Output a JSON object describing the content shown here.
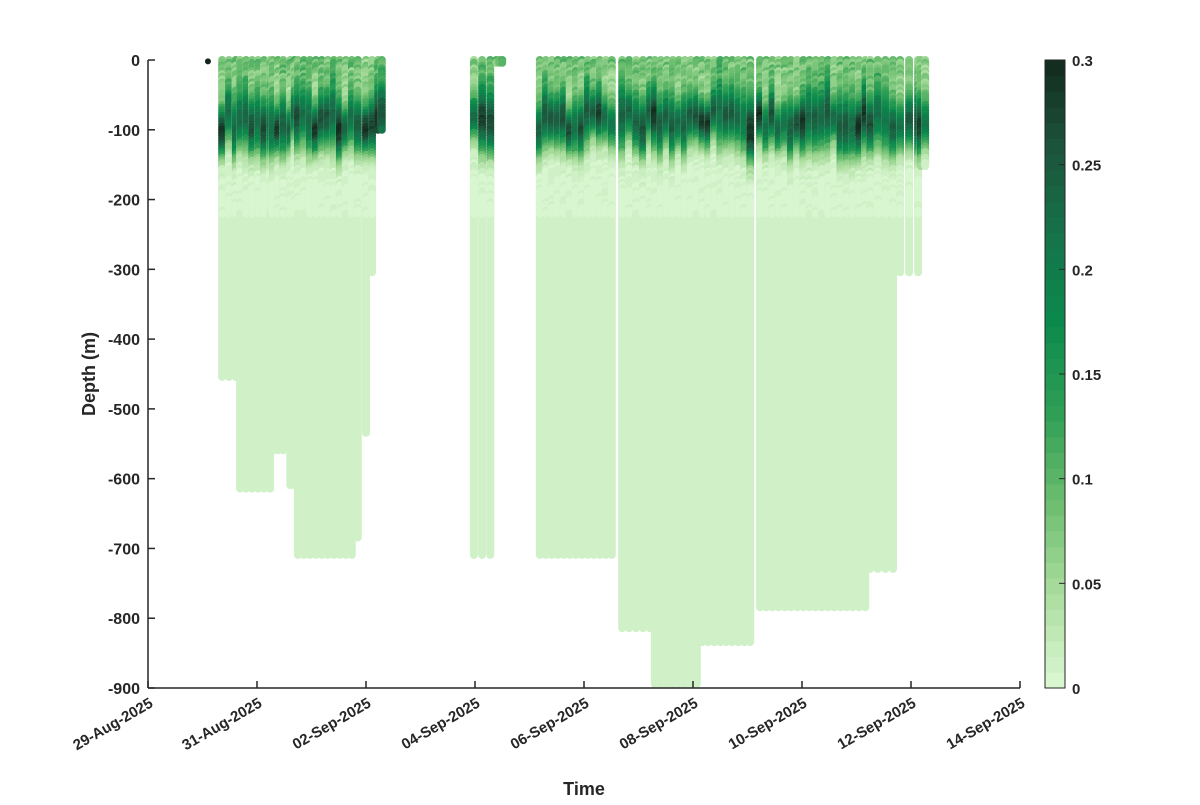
{
  "chart_data": {
    "type": "scatter",
    "title": "",
    "xlabel": "Time",
    "ylabel": "Depth (m)",
    "x_unit": "days since 29-Aug-2025",
    "xlim": [
      0,
      16
    ],
    "ylim": [
      -900,
      0
    ],
    "x_ticks": [
      0,
      2,
      4,
      6,
      8,
      10,
      12,
      14,
      16
    ],
    "x_tick_labels": [
      "29-Aug-2025",
      "31-Aug-2025",
      "02-Sep-2025",
      "04-Sep-2025",
      "06-Sep-2025",
      "08-Sep-2025",
      "10-Sep-2025",
      "12-Sep-2025",
      "14-Sep-2025"
    ],
    "y_ticks": [
      0,
      -100,
      -200,
      -300,
      -400,
      -500,
      -600,
      -700,
      -800,
      -900
    ],
    "y_tick_labels": [
      "0",
      "-100",
      "-200",
      "-300",
      "-400",
      "-500",
      "-600",
      "-700",
      "-800",
      "-900"
    ],
    "colorbar": {
      "range": [
        0,
        0.3
      ],
      "ticks": [
        0,
        0.05,
        0.1,
        0.15,
        0.2,
        0.25,
        0.3
      ],
      "tick_labels": [
        "0",
        "0.05",
        "0.1",
        "0.15",
        "0.2",
        "0.25",
        "0.3"
      ],
      "colors": [
        "#d8f6d0",
        "#a9dc9c",
        "#6bbd6e",
        "#2e9e55",
        "#0b8a4c",
        "#16714a",
        "#1c523a",
        "#11251a"
      ]
    },
    "profile_groups": [
      {
        "start_day": 1.36,
        "end_day": 1.61,
        "count": 3,
        "max_depth": -460
      },
      {
        "start_day": 1.69,
        "end_day": 2.24,
        "count": 6,
        "max_depth": -620
      },
      {
        "start_day": 2.29,
        "end_day": 2.48,
        "count": 3,
        "max_depth": -565
      },
      {
        "start_day": 2.61,
        "end_day": 2.69,
        "count": 2,
        "max_depth": -615
      },
      {
        "start_day": 2.75,
        "end_day": 3.74,
        "count": 10,
        "max_depth": -715
      },
      {
        "start_day": 3.85,
        "end_day": 3.85,
        "count": 1,
        "max_depth": -690
      },
      {
        "start_day": 4.0,
        "end_day": 4.0,
        "count": 1,
        "max_depth": -540
      },
      {
        "start_day": 4.11,
        "end_day": 4.11,
        "count": 1,
        "max_depth": -310
      },
      {
        "start_day": 4.22,
        "end_day": 4.29,
        "count": 2,
        "max_depth": -100
      },
      {
        "start_day": 5.98,
        "end_day": 6.28,
        "count": 3,
        "max_depth": -715
      },
      {
        "start_day": 6.39,
        "end_day": 6.5,
        "count": 3,
        "max_depth": -5
      },
      {
        "start_day": 7.19,
        "end_day": 8.51,
        "count": 13,
        "max_depth": -715
      },
      {
        "start_day": 8.7,
        "end_day": 9.21,
        "count": 5,
        "max_depth": -820
      },
      {
        "start_day": 9.3,
        "end_day": 10.07,
        "count": 8,
        "max_depth": -900
      },
      {
        "start_day": 10.17,
        "end_day": 11.05,
        "count": 9,
        "max_depth": -840
      },
      {
        "start_day": 11.23,
        "end_day": 13.16,
        "count": 18,
        "max_depth": -790
      },
      {
        "start_day": 13.25,
        "end_day": 13.67,
        "count": 4,
        "max_depth": -735
      },
      {
        "start_day": 13.8,
        "end_day": 14.13,
        "count": 3,
        "max_depth": -310
      },
      {
        "start_day": 14.18,
        "end_day": 14.26,
        "count": 2,
        "max_depth": -155
      }
    ],
    "typical_profile": {
      "surface_value": 0.07,
      "peak_depth": -90,
      "peak_value": 0.26,
      "background_value": 0.01
    },
    "isolated_points": [
      {
        "day": 1.1,
        "depth": -2,
        "value": 0.3
      }
    ]
  }
}
